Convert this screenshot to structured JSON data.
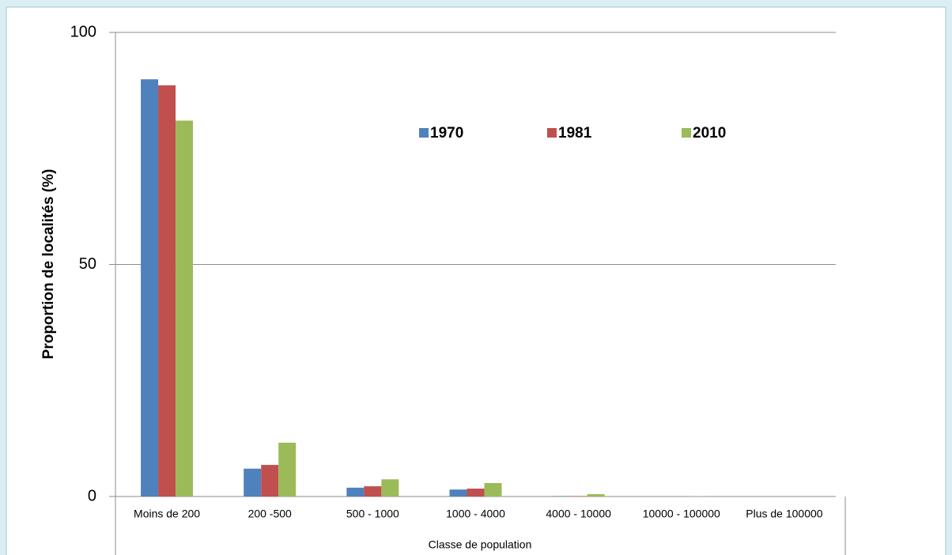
{
  "chart_data": {
    "type": "bar",
    "x_label": "Classe de population",
    "y_label": "Proportion de localités (%)",
    "categories": [
      "Moins de 200",
      "200 -500",
      "500 - 1000",
      "1000 - 4000",
      "4000 - 10000",
      "10000 - 100000",
      "Plus de 100000"
    ],
    "series": [
      {
        "name": "1970",
        "color": "#4f81bd",
        "values": [
          89.9,
          6.0,
          1.9,
          1.5,
          0.1,
          0,
          0
        ]
      },
      {
        "name": "1981",
        "color": "#c0504d",
        "values": [
          88.6,
          6.8,
          2.2,
          1.7,
          0.1,
          0,
          0
        ]
      },
      {
        "name": "2010",
        "color": "#9bbb59",
        "values": [
          81.0,
          11.6,
          3.7,
          2.9,
          0.5,
          0.05,
          0
        ]
      }
    ],
    "ylim": [
      0,
      100
    ],
    "yticks": [
      0,
      50,
      100
    ],
    "grid": true
  }
}
